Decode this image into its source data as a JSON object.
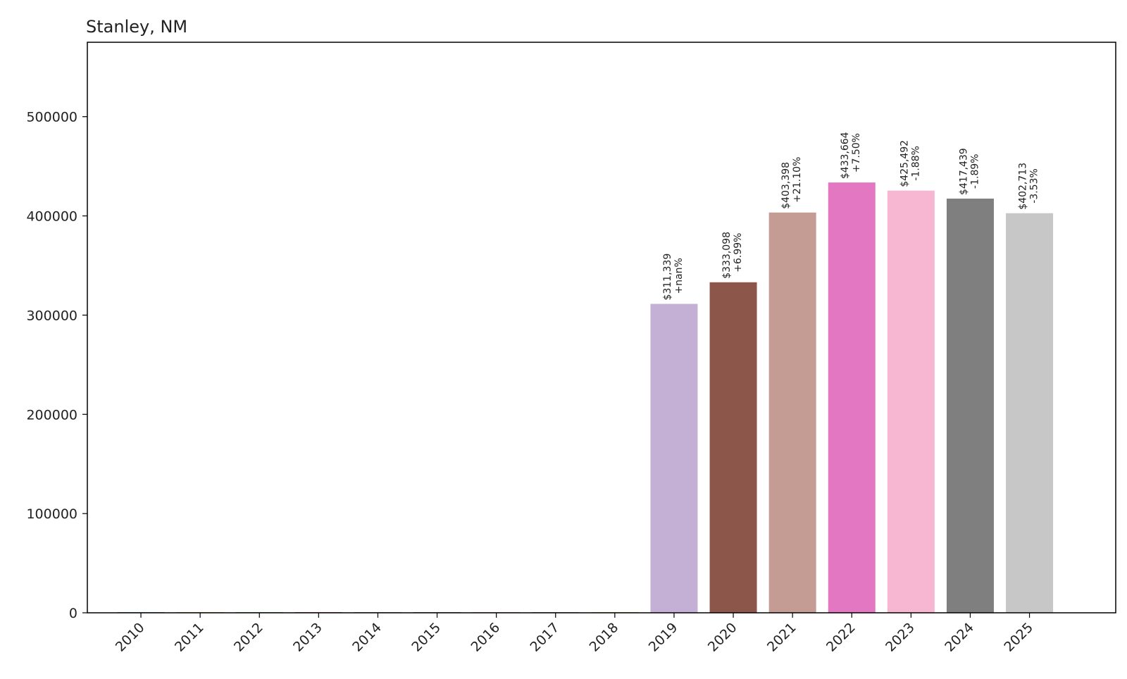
{
  "chart_data": {
    "type": "bar",
    "title": "Stanley, NM",
    "xlabel": "",
    "ylabel": "",
    "categories": [
      "2010",
      "2011",
      "2012",
      "2013",
      "2014",
      "2015",
      "2016",
      "2017",
      "2018",
      "2019",
      "2020",
      "2021",
      "2022",
      "2023",
      "2024",
      "2025"
    ],
    "values": [
      0,
      0,
      0,
      0,
      0,
      0,
      0,
      0,
      0,
      311339,
      333098,
      403398,
      433664,
      425492,
      417439,
      402713
    ],
    "value_labels": [
      "",
      "",
      "",
      "",
      "",
      "",
      "",
      "",
      "",
      "$311,339",
      "$333,098",
      "$403,398",
      "$433,664",
      "$425,492",
      "$417,439",
      "$402,713"
    ],
    "change_labels": [
      "",
      "",
      "",
      "",
      "",
      "",
      "",
      "",
      "",
      "+nan%",
      "+6.99%",
      "+21.10%",
      "+7.50%",
      "-1.88%",
      "-1.89%",
      "-3.53%"
    ],
    "colors": [
      "#1f77b4",
      "#ff7f0e",
      "#2ca02c",
      "#d62728",
      "#9467bd",
      "#8c564b",
      "#e377c2",
      "#7f7f7f",
      "#bcbd22",
      "#c5b0d5",
      "#8c564b",
      "#c49c94",
      "#e377c2",
      "#f7b6d2",
      "#7f7f7f",
      "#c7c7c7"
    ],
    "ylim": [
      0,
      575000
    ],
    "yticks": [
      0,
      100000,
      200000,
      300000,
      400000,
      500000
    ],
    "ytick_labels": [
      "0",
      "100000",
      "200000",
      "300000",
      "400000",
      "500000"
    ],
    "grid": false,
    "legend": "none"
  }
}
